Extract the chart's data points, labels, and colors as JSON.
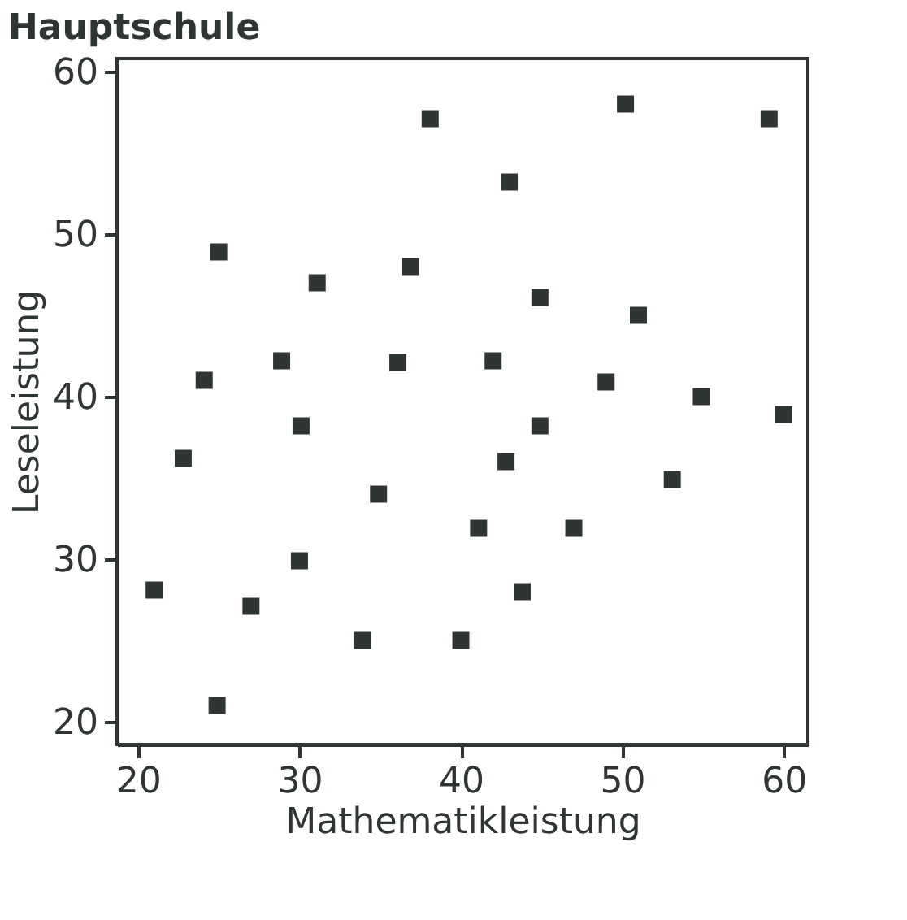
{
  "chart_data": {
    "type": "scatter",
    "title": "Hauptschule",
    "xlabel": "Mathematikleistung",
    "ylabel": "Leseleistung",
    "x": [
      38.1,
      25.0,
      31.1,
      36.9,
      28.9,
      36.1,
      24.1,
      50.2,
      59.1,
      43.0,
      44.9,
      51.0,
      42.0,
      49.0,
      54.9,
      60.0,
      53.1,
      41.1,
      47.0,
      43.8,
      40.0,
      44.9,
      42.8,
      30.1,
      22.8,
      34.9,
      30.0,
      21.0,
      27.0,
      33.9,
      24.9
    ],
    "series": [
      {
        "color": "#2f3532",
        "values": [
          57.1,
          48.9,
          47.0,
          48.0,
          42.2,
          42.1,
          41.0,
          58.0,
          57.1,
          53.2,
          46.1,
          45.0,
          42.2,
          40.9,
          40.0,
          38.9,
          34.9,
          31.9,
          31.9,
          28.0,
          25.0,
          38.2,
          36.0,
          38.2,
          36.2,
          34.0,
          29.9,
          28.1,
          27.1,
          25.0,
          21.0
        ]
      }
    ],
    "xlim": [
      18.7,
      61.5
    ],
    "ylim": [
      18.6,
      60.8
    ],
    "xticks": [
      20,
      30,
      40,
      50,
      60
    ],
    "yticks": [
      20,
      30,
      40,
      50,
      60
    ],
    "grid": false,
    "marker": "square"
  }
}
